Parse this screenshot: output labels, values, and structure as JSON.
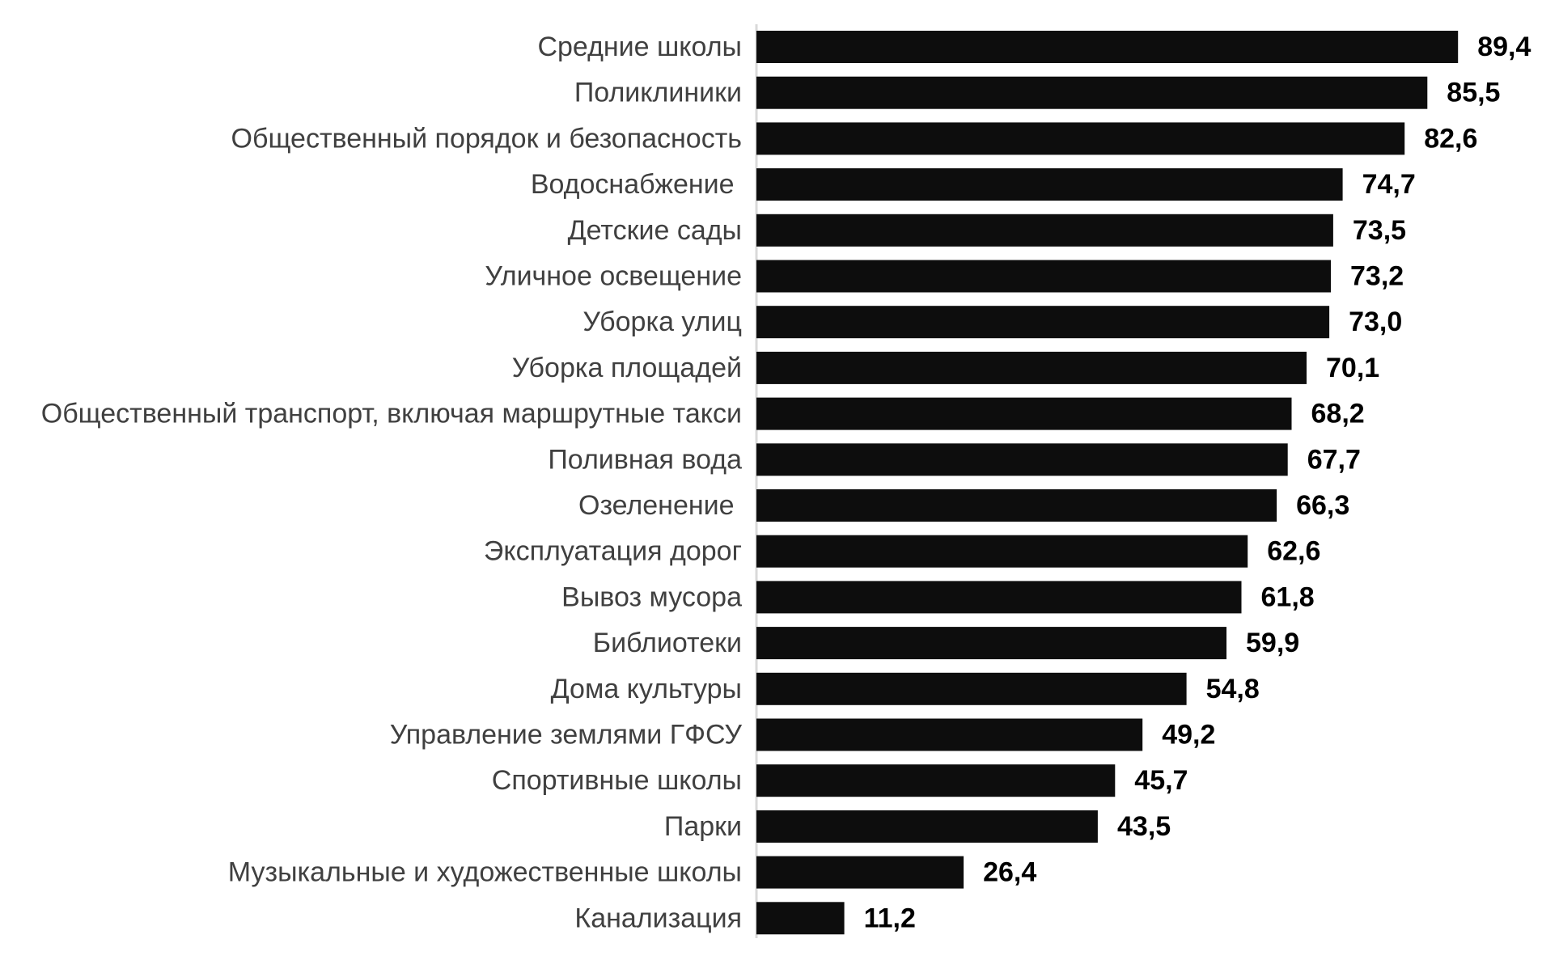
{
  "chart_data": {
    "type": "bar",
    "orientation": "horizontal",
    "title": "",
    "xlabel": "",
    "ylabel": "",
    "categories": [
      "Средние школы",
      "Поликлиники",
      "Общественный порядок и безопасность",
      "Водоснабжение ",
      "Детские сады",
      "Уличное освещение",
      "Уборка улиц",
      "Уборка площадей",
      "Общественный транспорт, включая маршрутные такси",
      "Поливная вода",
      "Озеленение ",
      "Эксплуатация дорог",
      "Вывоз мусора",
      "Библиотеки",
      "Дома культуры",
      "Управление землями ГФСУ",
      "Спортивные школы",
      "Парки",
      "Музыкальные и художественные школы",
      "Канализация"
    ],
    "values": [
      89.4,
      85.5,
      82.6,
      74.7,
      73.5,
      73.2,
      73.0,
      70.1,
      68.2,
      67.7,
      66.3,
      62.6,
      61.8,
      59.9,
      54.8,
      49.2,
      45.7,
      43.5,
      26.4,
      11.2
    ],
    "value_labels": [
      "89,4",
      "85,5",
      "82,6",
      "74,7",
      "73,5",
      "73,2",
      "73,0",
      "70,1",
      "68,2",
      "67,7",
      "66,3",
      "62,6",
      "61,8",
      "59,9",
      "54,8",
      "49,2",
      "45,7",
      "43,5",
      "26,4",
      "11,2"
    ],
    "xlim": [
      0,
      100
    ],
    "grid": false,
    "legend": "none",
    "bar_color": "#0d0d0d",
    "axis_color": "#d9d9d9",
    "category_label_color": "#404040",
    "value_label_color": "#000000"
  }
}
